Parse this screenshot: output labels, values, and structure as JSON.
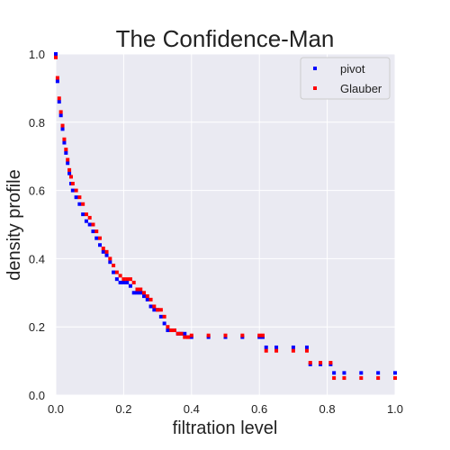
{
  "chart_data": {
    "type": "scatter",
    "title": "The Confidence-Man",
    "xlabel": "filtration level",
    "ylabel": "density profile",
    "xlim": [
      0.0,
      1.0
    ],
    "ylim": [
      0.0,
      1.0
    ],
    "x_ticks": [
      "0.0",
      "0.2",
      "0.4",
      "0.6",
      "0.8",
      "1.0"
    ],
    "y_ticks": [
      "0.0",
      "0.2",
      "0.4",
      "0.6",
      "0.8",
      "1.0"
    ],
    "grid": true,
    "legend_position": "top-right",
    "background_color": "#eaeaf2",
    "grid_color": "#ffffff",
    "series": [
      {
        "name": "pivot",
        "color": "#0000ff",
        "points": [
          [
            0.0,
            1.0
          ],
          [
            0.005,
            0.92
          ],
          [
            0.01,
            0.86
          ],
          [
            0.015,
            0.82
          ],
          [
            0.02,
            0.78
          ],
          [
            0.025,
            0.74
          ],
          [
            0.03,
            0.71
          ],
          [
            0.035,
            0.68
          ],
          [
            0.04,
            0.65
          ],
          [
            0.045,
            0.62
          ],
          [
            0.05,
            0.6
          ],
          [
            0.06,
            0.58
          ],
          [
            0.07,
            0.56
          ],
          [
            0.08,
            0.53
          ],
          [
            0.09,
            0.51
          ],
          [
            0.1,
            0.5
          ],
          [
            0.11,
            0.48
          ],
          [
            0.12,
            0.46
          ],
          [
            0.13,
            0.44
          ],
          [
            0.14,
            0.42
          ],
          [
            0.15,
            0.41
          ],
          [
            0.16,
            0.39
          ],
          [
            0.17,
            0.36
          ],
          [
            0.18,
            0.34
          ],
          [
            0.19,
            0.33
          ],
          [
            0.2,
            0.33
          ],
          [
            0.21,
            0.33
          ],
          [
            0.22,
            0.32
          ],
          [
            0.23,
            0.3
          ],
          [
            0.24,
            0.3
          ],
          [
            0.25,
            0.3
          ],
          [
            0.26,
            0.29
          ],
          [
            0.27,
            0.28
          ],
          [
            0.28,
            0.26
          ],
          [
            0.29,
            0.25
          ],
          [
            0.3,
            0.25
          ],
          [
            0.31,
            0.23
          ],
          [
            0.32,
            0.21
          ],
          [
            0.33,
            0.19
          ],
          [
            0.34,
            0.19
          ],
          [
            0.35,
            0.19
          ],
          [
            0.36,
            0.18
          ],
          [
            0.37,
            0.18
          ],
          [
            0.38,
            0.18
          ],
          [
            0.39,
            0.17
          ],
          [
            0.4,
            0.17
          ],
          [
            0.45,
            0.17
          ],
          [
            0.5,
            0.17
          ],
          [
            0.55,
            0.17
          ],
          [
            0.6,
            0.17
          ],
          [
            0.61,
            0.17
          ],
          [
            0.62,
            0.14
          ],
          [
            0.65,
            0.14
          ],
          [
            0.7,
            0.14
          ],
          [
            0.74,
            0.14
          ],
          [
            0.75,
            0.09
          ],
          [
            0.78,
            0.09
          ],
          [
            0.81,
            0.09
          ],
          [
            0.82,
            0.065
          ],
          [
            0.85,
            0.065
          ],
          [
            0.9,
            0.065
          ],
          [
            0.95,
            0.065
          ],
          [
            1.0,
            0.065
          ]
        ]
      },
      {
        "name": "Glauber",
        "color": "#ff0000",
        "points": [
          [
            0.0,
            0.99
          ],
          [
            0.005,
            0.93
          ],
          [
            0.01,
            0.87
          ],
          [
            0.015,
            0.83
          ],
          [
            0.02,
            0.79
          ],
          [
            0.025,
            0.75
          ],
          [
            0.03,
            0.72
          ],
          [
            0.035,
            0.69
          ],
          [
            0.04,
            0.66
          ],
          [
            0.045,
            0.64
          ],
          [
            0.05,
            0.62
          ],
          [
            0.06,
            0.6
          ],
          [
            0.07,
            0.58
          ],
          [
            0.08,
            0.56
          ],
          [
            0.09,
            0.53
          ],
          [
            0.1,
            0.52
          ],
          [
            0.11,
            0.5
          ],
          [
            0.12,
            0.48
          ],
          [
            0.13,
            0.46
          ],
          [
            0.14,
            0.43
          ],
          [
            0.15,
            0.42
          ],
          [
            0.16,
            0.4
          ],
          [
            0.17,
            0.38
          ],
          [
            0.18,
            0.36
          ],
          [
            0.19,
            0.35
          ],
          [
            0.2,
            0.34
          ],
          [
            0.21,
            0.34
          ],
          [
            0.22,
            0.34
          ],
          [
            0.23,
            0.33
          ],
          [
            0.24,
            0.31
          ],
          [
            0.25,
            0.31
          ],
          [
            0.26,
            0.3
          ],
          [
            0.27,
            0.29
          ],
          [
            0.28,
            0.28
          ],
          [
            0.29,
            0.26
          ],
          [
            0.3,
            0.25
          ],
          [
            0.31,
            0.25
          ],
          [
            0.32,
            0.23
          ],
          [
            0.33,
            0.2
          ],
          [
            0.34,
            0.19
          ],
          [
            0.35,
            0.19
          ],
          [
            0.36,
            0.18
          ],
          [
            0.37,
            0.18
          ],
          [
            0.38,
            0.17
          ],
          [
            0.39,
            0.17
          ],
          [
            0.4,
            0.175
          ],
          [
            0.45,
            0.175
          ],
          [
            0.5,
            0.175
          ],
          [
            0.55,
            0.175
          ],
          [
            0.6,
            0.175
          ],
          [
            0.61,
            0.175
          ],
          [
            0.62,
            0.13
          ],
          [
            0.65,
            0.13
          ],
          [
            0.7,
            0.13
          ],
          [
            0.74,
            0.13
          ],
          [
            0.75,
            0.095
          ],
          [
            0.78,
            0.095
          ],
          [
            0.81,
            0.095
          ],
          [
            0.82,
            0.05
          ],
          [
            0.85,
            0.05
          ],
          [
            0.9,
            0.05
          ],
          [
            0.95,
            0.05
          ],
          [
            1.0,
            0.05
          ]
        ]
      }
    ]
  }
}
